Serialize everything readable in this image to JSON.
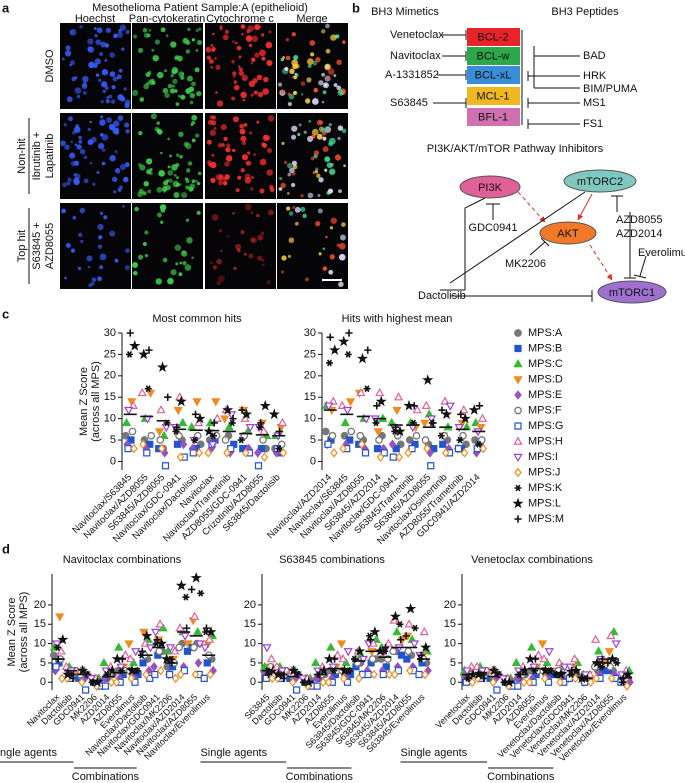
{
  "panel_a": {
    "label": "a",
    "title": "Mesothelioma Patient Sample:A (epithelioid)",
    "columns": [
      "Hoechst",
      "Pan-cytokeratin",
      "Cytochrome c",
      "Merge"
    ],
    "rows": [
      {
        "lines": [
          "DMSO"
        ]
      },
      {
        "group": "Non-hit",
        "lines": [
          "Ibrutinib +",
          "Lapatinib"
        ]
      },
      {
        "group": "Top hit",
        "lines": [
          "S63845 +",
          "AZD8055"
        ]
      }
    ]
  },
  "panel_b": {
    "label": "b",
    "left_title": "BH3 Mimetics",
    "right_title": "BH3 Peptides",
    "proteins": [
      {
        "name": "BCL-2",
        "color": "#e8242a"
      },
      {
        "name": "BCL-w",
        "color": "#2ca84a"
      },
      {
        "name": "BCL-xL",
        "color": "#3a8ed8"
      },
      {
        "name": "MCL-1",
        "color": "#f0b820"
      },
      {
        "name": "BFL-1",
        "color": "#d070b0"
      }
    ],
    "mimetics": [
      "Venetoclax",
      "Navitoclax",
      "A-1331852",
      "S63845"
    ],
    "peptides": [
      "BAD",
      "HRK",
      "BIM/PUMA",
      "MS1",
      "FS1"
    ],
    "pathway_title": "PI3K/AKT/mTOR Pathway Inhibitors",
    "nodes": [
      {
        "name": "PI3K",
        "color": "#e0609a"
      },
      {
        "name": "mTORC2",
        "color": "#7fc8c0"
      },
      {
        "name": "AKT",
        "color": "#f07828"
      },
      {
        "name": "mTORC1",
        "color": "#a070d0"
      }
    ],
    "inhibitors": [
      "GDC0941",
      "AZD8055",
      "AZD2014",
      "Everolimus",
      "MK2206",
      "Dactolisib"
    ]
  },
  "legend": [
    {
      "name": "MPS:A",
      "color": "#777777",
      "marker": "circle",
      "filled": true
    },
    {
      "name": "MPS:B",
      "color": "#2255cc",
      "marker": "square",
      "filled": true
    },
    {
      "name": "MPS:C",
      "color": "#33bb33",
      "marker": "triangle",
      "filled": true
    },
    {
      "name": "MPS:D",
      "color": "#f08c1e",
      "marker": "inv-triangle",
      "filled": true
    },
    {
      "name": "MPS:E",
      "color": "#9b4fc4",
      "marker": "diamond",
      "filled": true
    },
    {
      "name": "MPS:F",
      "color": "#777777",
      "marker": "circle",
      "filled": false
    },
    {
      "name": "MPS:G",
      "color": "#2255cc",
      "marker": "square",
      "filled": false
    },
    {
      "name": "MPS:H",
      "color": "#e0609a",
      "marker": "triangle",
      "filled": false
    },
    {
      "name": "MPS:I",
      "color": "#a040d0",
      "marker": "inv-triangle",
      "filled": false
    },
    {
      "name": "MPS:J",
      "color": "#f08c1e",
      "marker": "diamond",
      "filled": false
    },
    {
      "name": "MPS:K",
      "color": "#111111",
      "marker": "asterisk",
      "filled": false
    },
    {
      "name": "MPS:L",
      "color": "#111111",
      "marker": "star",
      "filled": true
    },
    {
      "name": "MPS:M",
      "color": "#111111",
      "marker": "plus",
      "filled": false
    }
  ],
  "chart_data": [
    {
      "type": "dot",
      "panel_label": "c",
      "title": "Most common hits",
      "ylabel": [
        "Mean Z Score",
        "(across all MPS)"
      ],
      "ylim": [
        -2,
        30
      ],
      "yticks": [
        0,
        5,
        10,
        15,
        20,
        25,
        30
      ],
      "categories": [
        "Navitoclax/S63845",
        "Navitoclax/AZD8055",
        "S63845/AZD8055",
        "Navitoclax/GDC-0941",
        "Navitoclax/Dactolisib",
        "Navitoclax",
        "Navitoclax/Trametinib",
        "AZD8055/GDC-0941",
        "Crizotinib/AZD8055",
        "S63845/Dactolisib"
      ],
      "means": [
        11,
        10.5,
        9.5,
        7.5,
        7.3,
        7.2,
        7,
        6.5,
        6.2,
        6
      ],
      "values": [
        [
          6,
          5,
          3,
          5,
          4,
          5,
          6,
          3,
          3,
          3
        ],
        [
          5,
          4,
          3,
          4,
          3,
          5,
          4,
          3,
          3,
          2
        ],
        [
          9,
          10,
          6,
          9,
          8,
          9,
          8,
          7,
          6,
          6
        ],
        [
          14,
          16,
          7,
          12,
          14,
          14,
          10,
          12,
          9,
          8
        ],
        [
          4,
          3,
          2,
          4,
          3,
          3,
          2,
          3,
          2,
          2
        ],
        [
          7,
          6,
          5,
          6,
          6,
          6,
          5,
          6,
          5,
          4
        ],
        [
          3,
          2,
          -1,
          1,
          2,
          4,
          3,
          2,
          -1,
          3
        ],
        [
          13,
          16,
          12,
          15,
          9,
          10,
          12,
          10,
          7,
          9
        ],
        [
          12,
          10,
          8,
          8,
          5,
          4,
          11,
          8,
          8,
          6
        ],
        [
          3,
          4,
          3,
          1,
          2,
          2,
          2,
          2,
          1,
          2
        ],
        [
          25,
          17,
          9,
          7,
          5,
          6,
          9,
          5,
          8,
          3
        ],
        [
          27,
          25,
          22,
          14,
          10,
          7,
          12,
          11,
          13,
          11
        ],
        [
          30,
          26,
          15,
          8,
          11,
          9,
          10,
          12,
          9,
          7
        ]
      ]
    },
    {
      "type": "dot",
      "title": "Hits with highest mean",
      "ylim": [
        -2,
        30
      ],
      "yticks": [
        0,
        5,
        10,
        15,
        20,
        25,
        30
      ],
      "categories": [
        "Navitoclax/AZD2014",
        "Navitoclax/S63845",
        "Navitoclax/AZD8055",
        "S63845/AZD2014",
        "Navitoclax/GDC-0941",
        "S63845/Trametinib",
        "S63845/AZD8055",
        "Navitoclax/Osimertinib",
        "AZD8055/Trametinib",
        "GDC0941/AZD2014"
      ],
      "means": [
        12,
        11,
        10.5,
        10,
        8.5,
        8.5,
        8,
        8,
        7.5,
        7
      ],
      "values": [
        [
          7,
          6,
          5,
          6,
          4,
          5,
          4,
          5,
          4,
          5
        ],
        [
          5,
          5,
          4,
          3,
          3,
          4,
          3,
          4,
          3,
          4
        ],
        [
          13,
          9,
          10,
          10,
          9,
          9,
          11,
          8,
          8,
          9
        ],
        [
          12,
          14,
          16,
          7,
          12,
          8,
          9,
          6,
          9,
          8
        ],
        [
          4,
          4,
          3,
          3,
          4,
          3,
          2,
          3,
          3,
          2
        ],
        [
          6,
          7,
          6,
          5,
          6,
          6,
          5,
          6,
          6,
          5
        ],
        [
          4,
          3,
          2,
          2,
          1,
          3,
          -1,
          2,
          3,
          3
        ],
        [
          14,
          13,
          16,
          16,
          15,
          12,
          13,
          14,
          12,
          10
        ],
        [
          13,
          12,
          10,
          10,
          8,
          8,
          10,
          13,
          8,
          7
        ],
        [
          2,
          3,
          4,
          1,
          1,
          2,
          3,
          2,
          2,
          3
        ],
        [
          23,
          25,
          17,
          9,
          7,
          9,
          9,
          6,
          5,
          4
        ],
        [
          26,
          28,
          24,
          14,
          7,
          13,
          19,
          11,
          10,
          12
        ],
        [
          29,
          30,
          26,
          13,
          8,
          13,
          9,
          12,
          11,
          13
        ]
      ]
    },
    {
      "type": "dot",
      "panel_label": "d",
      "title": "Navitoclax combinations",
      "ylabel": [
        "Mean Z Score",
        "(across all MPS)"
      ],
      "ylim": [
        -2,
        28
      ],
      "yticks": [
        0,
        5,
        10,
        15,
        20
      ],
      "groups": [
        "Single agents",
        "Combinations"
      ],
      "categories": [
        "Navitoclax",
        "Dactolisib",
        "GDC0941",
        "MK2206",
        "AZD2014",
        "AZD8055",
        "Everolimus",
        "Navitoclax/Dactolisib",
        "Navitoclax/GDC0941",
        "Navitoclax/MK2206",
        "Navitoclax/AZD2014",
        "Navitoclax/AZD8055",
        "Navitoclax/Everolimus"
      ],
      "means": [
        6,
        3,
        2,
        0.5,
        1.5,
        2.5,
        3.5,
        7,
        9,
        5,
        13,
        12,
        7
      ],
      "values": [
        [
          7,
          2,
          2,
          0,
          2,
          3,
          2,
          6,
          8,
          4,
          10,
          10,
          6
        ],
        [
          5,
          3,
          1,
          0,
          1,
          2,
          2,
          5,
          7,
          4,
          8,
          9,
          5
        ],
        [
          9,
          4,
          3,
          1,
          5,
          9,
          5,
          11,
          14,
          8,
          13,
          13,
          12
        ],
        [
          17,
          3,
          2,
          1,
          3,
          4,
          10,
          13,
          11,
          6,
          10,
          16,
          10
        ],
        [
          3,
          2,
          1,
          0,
          1,
          1,
          1,
          3,
          4,
          2,
          4,
          5,
          3
        ],
        [
          6,
          3,
          2,
          1,
          2,
          3,
          3,
          7,
          8,
          5,
          9,
          9,
          7
        ],
        [
          4,
          1,
          -2,
          -1,
          -1,
          0,
          0,
          1,
          2,
          2,
          3,
          2,
          1
        ],
        [
          8,
          4,
          3,
          1,
          4,
          7,
          6,
          10,
          15,
          8,
          14,
          17,
          11
        ],
        [
          10,
          3,
          2,
          1,
          3,
          4,
          8,
          9,
          13,
          9,
          12,
          10,
          9
        ],
        [
          1,
          1,
          0,
          -1,
          0,
          0,
          1,
          2,
          3,
          1,
          2,
          2,
          2
        ],
        [
          9,
          2,
          2,
          0,
          2,
          3,
          3,
          7,
          10,
          6,
          22,
          23,
          13
        ],
        [
          11,
          2,
          3,
          0,
          3,
          6,
          3,
          12,
          10,
          6,
          25,
          27,
          13
        ],
        [
          6,
          1,
          2,
          0,
          2,
          6,
          3,
          8,
          11,
          5,
          14,
          24,
          14
        ]
      ]
    },
    {
      "type": "dot",
      "title": "S63845 combinations",
      "ylim": [
        -2,
        28
      ],
      "yticks": [
        0,
        5,
        10,
        15,
        20
      ],
      "groups": [
        "Single agents",
        "Combinations"
      ],
      "categories": [
        "S63845",
        "Dactolisib",
        "GDC0941",
        "MK2206",
        "AZD2014",
        "AZD8055",
        "Everolimus",
        "S63845/Dactolisib",
        "S63845/GDC-0941",
        "S63845/MK2206",
        "S63845/AZD2014",
        "S63845/AZD8055",
        "S63845/Everolimus"
      ],
      "means": [
        3,
        2,
        1.5,
        0,
        2,
        3.5,
        3.5,
        5.5,
        8,
        6.5,
        9,
        9,
        6
      ],
      "values": [
        [
          3,
          2,
          2,
          0,
          2,
          3,
          2,
          5,
          6,
          6,
          8,
          7,
          5
        ],
        [
          3,
          3,
          1,
          0,
          1,
          2,
          2,
          4,
          5,
          4,
          7,
          6,
          5
        ],
        [
          4,
          4,
          3,
          1,
          5,
          9,
          5,
          7,
          11,
          9,
          13,
          11,
          8
        ],
        [
          4,
          3,
          2,
          1,
          3,
          4,
          10,
          5,
          8,
          6,
          11,
          12,
          7
        ],
        [
          2,
          2,
          1,
          0,
          1,
          1,
          1,
          2,
          3,
          3,
          4,
          4,
          3
        ],
        [
          4,
          3,
          2,
          1,
          2,
          3,
          3,
          5,
          6,
          6,
          8,
          8,
          6
        ],
        [
          1,
          1,
          -2,
          -1,
          -1,
          0,
          0,
          2,
          2,
          2,
          3,
          3,
          2
        ],
        [
          6,
          4,
          3,
          1,
          4,
          7,
          6,
          8,
          10,
          10,
          16,
          15,
          13
        ],
        [
          9,
          3,
          2,
          1,
          3,
          4,
          8,
          6,
          10,
          8,
          9,
          10,
          7
        ],
        [
          1,
          1,
          0,
          -1,
          0,
          0,
          1,
          1,
          2,
          2,
          2,
          3,
          2
        ],
        [
          3,
          2,
          2,
          0,
          2,
          3,
          3,
          6,
          12,
          8,
          15,
          14,
          6
        ],
        [
          3,
          2,
          3,
          0,
          3,
          6,
          3,
          8,
          13,
          8,
          17,
          19,
          9
        ],
        [
          2,
          1,
          2,
          0,
          2,
          6,
          3,
          6,
          11,
          9,
          11,
          12,
          7
        ]
      ]
    },
    {
      "type": "dot",
      "title": "Venetoclax combinations",
      "ylim": [
        -2,
        28
      ],
      "yticks": [
        0,
        5,
        10,
        15,
        20
      ],
      "groups": [
        "Single agents",
        "Combinations"
      ],
      "categories": [
        "Venetoclax",
        "Dactolisib",
        "GDC0941",
        "MK2206",
        "AZD2014",
        "AZD8055",
        "Everolimus",
        "Venetoclax/Dactolisib",
        "Venetoclax/GDC0941",
        "Venetoclax/MK2206",
        "Venetoclax/AZD2014",
        "Venetoclax/AZD8055",
        "Venetoclax/Everolimus"
      ],
      "means": [
        2,
        2.5,
        1.5,
        0,
        2,
        3.5,
        3.5,
        2.5,
        3,
        1,
        5,
        6,
        1.2
      ],
      "values": [
        [
          2,
          2,
          2,
          0,
          2,
          3,
          2,
          2,
          2,
          1,
          3,
          3,
          1
        ],
        [
          2,
          3,
          1,
          0,
          1,
          2,
          2,
          2,
          2,
          1,
          3,
          3,
          1
        ],
        [
          3,
          4,
          3,
          1,
          5,
          9,
          5,
          4,
          5,
          2,
          8,
          13,
          3
        ],
        [
          3,
          3,
          2,
          1,
          3,
          4,
          10,
          3,
          4,
          2,
          5,
          8,
          2
        ],
        [
          1,
          2,
          1,
          0,
          1,
          1,
          1,
          1,
          1,
          0,
          2,
          2,
          0
        ],
        [
          2,
          3,
          2,
          1,
          2,
          3,
          3,
          3,
          3,
          1,
          4,
          4,
          1
        ],
        [
          0,
          1,
          -2,
          -1,
          -1,
          0,
          0,
          0,
          1,
          0,
          1,
          1,
          0
        ],
        [
          4,
          4,
          3,
          1,
          4,
          7,
          6,
          5,
          6,
          2,
          11,
          12,
          3
        ],
        [
          3,
          3,
          2,
          1,
          3,
          4,
          8,
          4,
          4,
          2,
          6,
          10,
          2
        ],
        [
          0,
          1,
          0,
          -1,
          0,
          0,
          1,
          0,
          1,
          0,
          1,
          1,
          -1
        ],
        [
          1,
          2,
          2,
          0,
          2,
          3,
          3,
          2,
          2,
          1,
          4,
          5,
          0
        ],
        [
          2,
          2,
          3,
          0,
          3,
          6,
          3,
          2,
          3,
          1,
          5,
          6,
          2
        ],
        [
          1,
          1,
          2,
          0,
          2,
          6,
          3,
          2,
          3,
          1,
          6,
          5,
          1
        ]
      ]
    }
  ]
}
